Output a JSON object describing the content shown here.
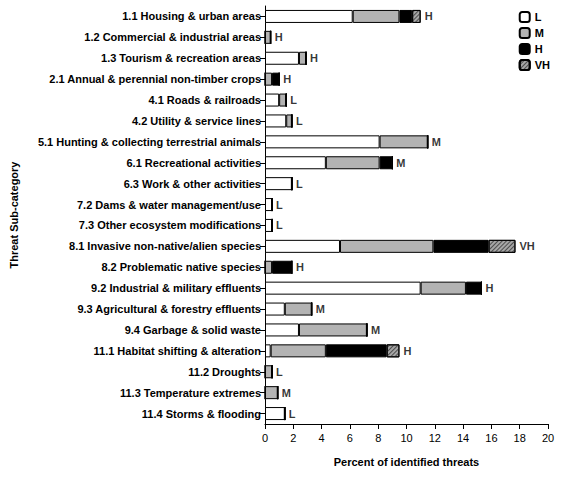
{
  "chart_data": {
    "type": "bar",
    "orientation": "horizontal",
    "stacked": true,
    "legend": "top-right",
    "x_label": "Percent of identified threats",
    "y_label": "Threat Sub-category",
    "xlim": [
      0,
      20
    ],
    "xticks": [
      0,
      2,
      4,
      6,
      8,
      10,
      12,
      14,
      16,
      18,
      20
    ],
    "grid": false,
    "categories": [
      "1.1 Housing & urban areas",
      "1.2 Commercial & industrial areas",
      "1.3 Tourism & recreation areas",
      "2.1 Annual & perennial non-timber crops",
      "4.1 Roads & railroads",
      "4.2 Utility & service lines",
      "5.1 Hunting & collecting terrestrial animals",
      "6.1 Recreational activities",
      "6.3 Work & other activities",
      "7.2 Dams & water management/use",
      "7.3 Other ecosystem modifications",
      "8.1 Invasive non-native/alien species",
      "8.2 Problematic native species",
      "9.2 Industrial & military effluents",
      "9.3 Agricultural & forestry effluents",
      "9.4 Garbage & solid waste",
      "11.1 Habitat shifting & alteration",
      "11.2 Droughts",
      "11.3 Temperature extremes",
      "11.4 Storms & flooding"
    ],
    "annotations": [
      "H",
      "H",
      "H",
      "H",
      "L",
      "L",
      "M",
      "M",
      "L",
      "L",
      "L",
      "VH",
      "H",
      "H",
      "M",
      "M",
      "H",
      "L",
      "M",
      "L"
    ],
    "series": [
      {
        "name": "L",
        "color": "#ffffff",
        "values": [
          6.2,
          0,
          2.4,
          0,
          1.0,
          1.5,
          8.1,
          4.3,
          1.9,
          0.5,
          0.5,
          5.3,
          0,
          11.0,
          1.4,
          2.4,
          0.4,
          0,
          0,
          1.4
        ]
      },
      {
        "name": "M",
        "color": "#b3b3b3",
        "values": [
          3.3,
          0.4,
          0.5,
          0.5,
          0.5,
          0.4,
          3.4,
          3.8,
          0,
          0,
          0,
          6.6,
          0.5,
          3.2,
          1.9,
          4.8,
          3.9,
          0.5,
          0.9,
          0
        ]
      },
      {
        "name": "H",
        "color": "#000000",
        "values": [
          0.9,
          0,
          0,
          0.5,
          0,
          0,
          0,
          0.9,
          0,
          0,
          0,
          3.9,
          1.4,
          1.1,
          0,
          0,
          4.3,
          0,
          0,
          0
        ]
      },
      {
        "name": "VH",
        "color": "#a6a6a6",
        "values": [
          0.6,
          0,
          0,
          0,
          0,
          0,
          0,
          0,
          0,
          0,
          0,
          1.9,
          0,
          0,
          0,
          0,
          0.9,
          0,
          0,
          0
        ]
      }
    ]
  }
}
